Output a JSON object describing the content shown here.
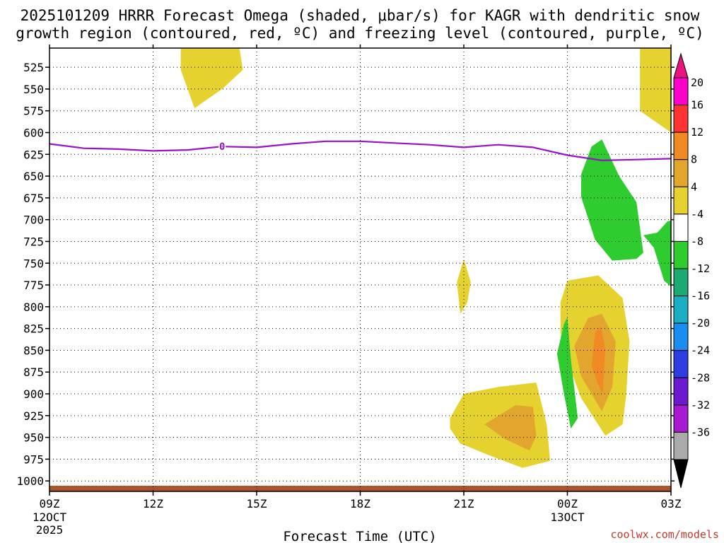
{
  "chart_data": {
    "type": "heatmap",
    "title_line1": "2025101209 HRRR Forecast Omega (shaded, μbar/s) for KAGR with dendritic snow",
    "title_line2": "growth region (contoured, red, ºC) and freezing level (contoured, purple, ºC)",
    "xlabel": "Forecast Time (UTC)",
    "credit": "coolwx.com/models",
    "x_ticks": [
      {
        "hour": 0,
        "label": "09Z",
        "sub1": "12OCT",
        "sub2": "2025"
      },
      {
        "hour": 3,
        "label": "12Z"
      },
      {
        "hour": 6,
        "label": "15Z"
      },
      {
        "hour": 9,
        "label": "18Z"
      },
      {
        "hour": 12,
        "label": "21Z"
      },
      {
        "hour": 15,
        "label": "00Z",
        "sub1": "13OCT"
      },
      {
        "hour": 18,
        "label": "03Z"
      }
    ],
    "xlim": [
      0,
      18
    ],
    "y_ticks": [
      "525",
      "550",
      "575",
      "600",
      "625",
      "650",
      "675",
      "700",
      "725",
      "750",
      "775",
      "800",
      "825",
      "850",
      "875",
      "900",
      "925",
      "950",
      "975",
      "1000"
    ],
    "ylim": [
      503,
      1012
    ],
    "freezing_level": {
      "label": "0",
      "label_hour": 5,
      "points": [
        [
          0,
          613
        ],
        [
          1,
          618
        ],
        [
          2,
          619
        ],
        [
          3,
          621
        ],
        [
          4,
          620
        ],
        [
          5,
          616
        ],
        [
          6,
          617
        ],
        [
          7,
          613
        ],
        [
          8,
          610
        ],
        [
          9,
          610
        ],
        [
          10,
          612
        ],
        [
          11,
          614
        ],
        [
          12,
          617
        ],
        [
          13,
          614
        ],
        [
          14,
          617
        ],
        [
          15,
          626
        ],
        [
          16,
          632
        ],
        [
          17,
          631
        ],
        [
          18,
          630
        ]
      ]
    },
    "shaded_regions": [
      {
        "value": 4,
        "color": "#e6d22e",
        "points": [
          [
            3.8,
            503
          ],
          [
            5.5,
            503
          ],
          [
            5.6,
            528
          ],
          [
            5,
            550
          ],
          [
            4.2,
            572
          ],
          [
            3.8,
            528
          ]
        ]
      },
      {
        "value": 4,
        "color": "#e6d22e",
        "points": [
          [
            17.1,
            503
          ],
          [
            18,
            503
          ],
          [
            18,
            600
          ],
          [
            17.1,
            575
          ]
        ]
      },
      {
        "value": 4,
        "color": "#e6d22e",
        "points": [
          [
            11.8,
            772
          ],
          [
            12.0,
            745
          ],
          [
            12.2,
            772
          ],
          [
            12.1,
            795
          ],
          [
            11.9,
            808
          ]
        ]
      },
      {
        "value": 4,
        "color": "#e6d22e",
        "points": [
          [
            11.6,
            928
          ],
          [
            12,
            900
          ],
          [
            13,
            892
          ],
          [
            14.1,
            887
          ],
          [
            14.4,
            935
          ],
          [
            14.5,
            977
          ],
          [
            13.7,
            985
          ],
          [
            12.7,
            970
          ],
          [
            11.9,
            957
          ],
          [
            11.6,
            940
          ]
        ]
      },
      {
        "value": 8,
        "color": "#e2a52e",
        "points": [
          [
            12.6,
            935
          ],
          [
            13.5,
            913
          ],
          [
            14.0,
            915
          ],
          [
            14.1,
            948
          ],
          [
            13.9,
            965
          ],
          [
            13.2,
            952
          ]
        ]
      },
      {
        "value": 4,
        "color": "#e6d22e",
        "points": [
          [
            14.8,
            795
          ],
          [
            15.0,
            770
          ],
          [
            15.9,
            764
          ],
          [
            16.6,
            790
          ],
          [
            16.8,
            840
          ],
          [
            16.7,
            903
          ],
          [
            16.6,
            935
          ],
          [
            16.1,
            948
          ],
          [
            15.4,
            905
          ],
          [
            15.0,
            862
          ],
          [
            14.8,
            830
          ]
        ]
      },
      {
        "value": 8,
        "color": "#e2a52e",
        "points": [
          [
            15.2,
            845
          ],
          [
            15.6,
            813
          ],
          [
            16.0,
            808
          ],
          [
            16.4,
            840
          ],
          [
            16.3,
            892
          ],
          [
            16.0,
            920
          ],
          [
            15.4,
            880
          ]
        ]
      },
      {
        "value": 12,
        "color": "#f08a24",
        "points": [
          [
            15.7,
            868
          ],
          [
            15.8,
            830
          ],
          [
            15.96,
            822
          ],
          [
            16.1,
            848
          ],
          [
            16.02,
            900
          ],
          [
            15.9,
            890
          ]
        ]
      }
    ],
    "negative_regions": [
      {
        "value": -4,
        "color": "#2ecc2e",
        "points": [
          [
            15.4,
            648
          ],
          [
            15.7,
            616
          ],
          [
            16.0,
            608
          ],
          [
            16.5,
            650
          ],
          [
            17.0,
            680
          ],
          [
            17.2,
            738
          ],
          [
            17.0,
            745
          ],
          [
            16.3,
            747
          ],
          [
            15.8,
            723
          ],
          [
            15.4,
            674
          ]
        ]
      },
      {
        "value": -4,
        "color": "#2ecc2e",
        "points": [
          [
            17.2,
            718
          ],
          [
            17.6,
            715
          ],
          [
            17.9,
            702
          ],
          [
            18,
            701
          ],
          [
            18,
            777
          ],
          [
            17.8,
            770
          ],
          [
            17.5,
            732
          ]
        ]
      },
      {
        "value": -4,
        "color": "#2ecc2e",
        "points": [
          [
            14.7,
            854
          ],
          [
            14.9,
            820
          ],
          [
            15.0,
            812
          ],
          [
            15.1,
            860
          ],
          [
            15.3,
            928
          ],
          [
            15.1,
            940
          ],
          [
            14.9,
            900
          ]
        ]
      }
    ],
    "colorbar": {
      "labels": [
        "20",
        "16",
        "12",
        "8",
        "4",
        "-4",
        "-8",
        "-12",
        "-16",
        "-20",
        "-24",
        "-28",
        "-32",
        "-36"
      ],
      "colors": [
        "#f0c",
        "#f33",
        "#f08a24",
        "#e2a52e",
        "#e6d22e",
        "#ffffff",
        "#2ecc2e",
        "#1aaa72",
        "#1aaec2",
        "#1a8ef0",
        "#2e3ee2",
        "#6c1ad2",
        "#a81ad2",
        "#aaaaaa"
      ],
      "top_arrow": "#e8137e",
      "bottom_arrow": "#000000"
    }
  }
}
